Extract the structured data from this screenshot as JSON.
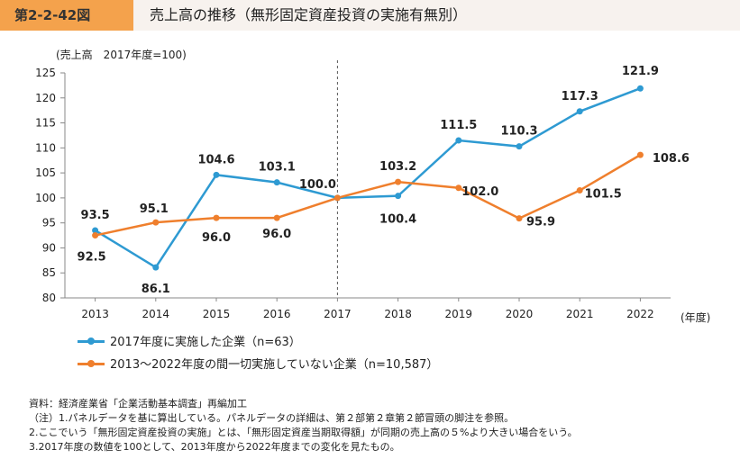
{
  "header": {
    "figure_number": "第2-2-42図",
    "title": "売上高の推移（無形固定資産投資の実施有無別）"
  },
  "unit_label": "(売上高　2017年度=100)",
  "x_unit_label": "(年度)",
  "legend": {
    "series1": "2017年度に実施した企業（n=63）",
    "series2": "2013～2022年度の間一切実施していない企業（n=10,587）"
  },
  "notes": {
    "source": "資料：経済産業省「企業活動基本調査」再編加工",
    "note1": "（注）1.パネルデータを基に算出している。パネルデータの詳細は、第２部第２章第２節冒頭の脚注を参照。",
    "note2": "2.ここでいう「無形固定資産投資の実施」とは、「無形固定資産当期取得額」が同期の売上高の５%より大きい場合をいう。",
    "note3": "3.2017年度の数値を100として、2013年度から2022年度までの変化を見たもの。"
  },
  "chart_data": {
    "type": "line",
    "categories": [
      "2013",
      "2014",
      "2015",
      "2016",
      "2017",
      "2018",
      "2019",
      "2020",
      "2021",
      "2022"
    ],
    "ylim": [
      80,
      125
    ],
    "yticks": [
      80,
      85,
      90,
      95,
      100,
      105,
      110,
      115,
      120,
      125
    ],
    "reference_line_at": "2017",
    "series": [
      {
        "name": "2017年度に実施した企業（n=63）",
        "color": "#2e9ad2",
        "values": [
          93.5,
          86.1,
          104.6,
          103.1,
          100.0,
          100.4,
          111.5,
          110.3,
          117.3,
          121.9
        ],
        "labels": [
          "93.5",
          "86.1",
          "104.6",
          "103.1",
          "100.0",
          "100.4",
          "111.5",
          "110.3",
          "117.3",
          "121.9"
        ]
      },
      {
        "name": "2013～2022年度の間一切実施していない企業（n=10,587）",
        "color": "#ef7f2d",
        "values": [
          92.5,
          95.1,
          96.0,
          96.0,
          100.0,
          103.2,
          102.0,
          95.9,
          101.5,
          108.6
        ],
        "labels": [
          "92.5",
          "95.1",
          "96.0",
          "96.0",
          "",
          "103.2",
          "102.0",
          "95.9",
          "101.5",
          "108.6"
        ]
      }
    ]
  }
}
